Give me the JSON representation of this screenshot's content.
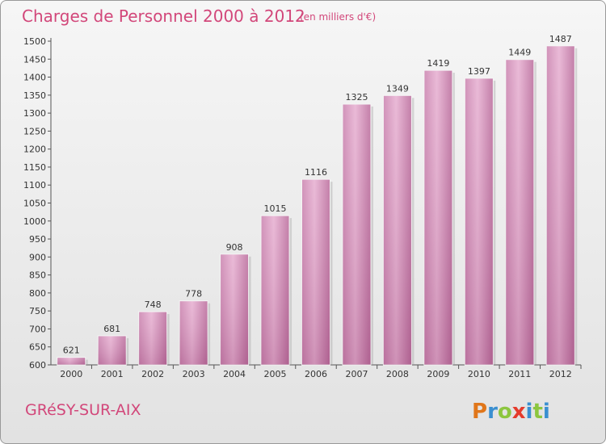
{
  "chart_data": {
    "type": "bar",
    "title": "Charges de Personnel 2000 à 2012",
    "subtitle": "(en milliers d'€)",
    "xlabel": "",
    "ylabel": "",
    "categories": [
      "2000",
      "2001",
      "2002",
      "2003",
      "2004",
      "2005",
      "2006",
      "2007",
      "2008",
      "2009",
      "2010",
      "2011",
      "2012"
    ],
    "values": [
      621,
      681,
      748,
      778,
      908,
      1015,
      1116,
      1325,
      1349,
      1419,
      1397,
      1449,
      1487
    ],
    "ylim": [
      600,
      1500
    ],
    "yticks": [
      600,
      650,
      700,
      750,
      800,
      850,
      900,
      950,
      1000,
      1050,
      1100,
      1150,
      1200,
      1250,
      1300,
      1350,
      1400,
      1450,
      1500
    ],
    "grid": false,
    "legend": "none",
    "bar_color": "#d58ab6"
  },
  "footer": {
    "commune": "GRéSY-SUR-AIX",
    "logo": [
      "P",
      "r",
      "o",
      "x",
      "i",
      "t",
      "i"
    ],
    "logo_colors": [
      "#e0761a",
      "#3a8fd0",
      "#8cc63f",
      "#e53b2c",
      "#3a8fd0",
      "#8cc63f",
      "#3a8fd0"
    ]
  }
}
